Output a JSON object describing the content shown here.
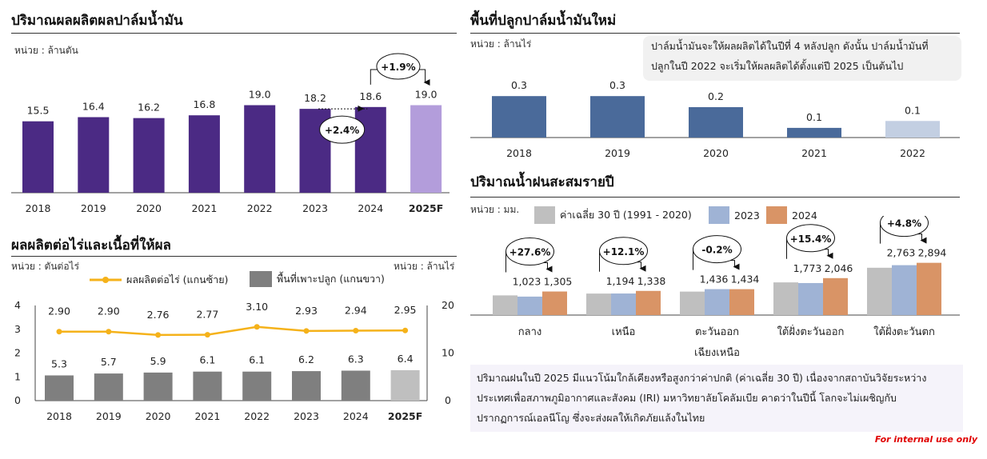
{
  "internal_note": "For internal use only",
  "chart_data": [
    {
      "id": "production",
      "type": "bar",
      "title": "ปริมาณผลผลิตผลปาล์มน้ำมัน",
      "unit": "หน่วย : ล้านตัน",
      "categories": [
        "2018",
        "2019",
        "2020",
        "2021",
        "2022",
        "2023",
        "2024",
        "2025F"
      ],
      "values": [
        15.5,
        16.4,
        16.2,
        16.8,
        19.0,
        18.2,
        18.6,
        19.0
      ],
      "value_labels": [
        "15.5",
        "16.4",
        "16.2",
        "16.8",
        "19.0",
        "18.2",
        "18.6",
        "19.0"
      ],
      "colors": {
        "actual": "#4b2a84",
        "forecast": "#b39ddb"
      },
      "annotations": [
        "+2.4%",
        "+1.9%"
      ],
      "ylim": [
        0,
        21
      ]
    },
    {
      "id": "yield",
      "type": "bar+line",
      "title": "ผลผลิตต่อไร่และเนื้อที่ให้ผล",
      "unit_left": "หน่วย : ตันต่อไร่",
      "unit_right": "หน่วย : ล้านไร่",
      "categories": [
        "2018",
        "2019",
        "2020",
        "2021",
        "2022",
        "2023",
        "2024",
        "2025F"
      ],
      "series": [
        {
          "name": "ผลผลิตต่อไร่ (แกนซ้าย)",
          "type": "line",
          "axis": "left",
          "color": "#f5b21a",
          "values": [
            2.9,
            2.9,
            2.76,
            2.77,
            3.1,
            2.93,
            2.94,
            2.95
          ],
          "labels": [
            "2.90",
            "2.90",
            "2.76",
            "2.77",
            "3.10",
            "2.93",
            "2.94",
            "2.95"
          ]
        },
        {
          "name": "พื้นที่เพาะปลูก (แกนขวา)",
          "type": "bar",
          "axis": "right",
          "color": "#7f7f7f",
          "forecast_color": "#bfbfbf",
          "values": [
            5.3,
            5.7,
            5.9,
            6.1,
            6.1,
            6.2,
            6.3,
            6.4
          ],
          "labels": [
            "5.3",
            "5.7",
            "5.9",
            "6.1",
            "6.1",
            "6.2",
            "6.3",
            "6.4"
          ]
        }
      ],
      "left_axis": {
        "range": [
          0,
          4
        ],
        "ticks": [
          "0",
          "1",
          "2",
          "3",
          "4"
        ]
      },
      "right_axis": {
        "range": [
          0,
          20
        ],
        "ticks": [
          "0",
          "10",
          "20"
        ]
      }
    },
    {
      "id": "new_area",
      "type": "bar",
      "title": "พื้นที่ปลูกปาล์มน้ำมันใหม่",
      "unit": "หน่วย : ล้านไร่",
      "note": [
        "ปาล์มน้ำมันจะให้ผลผลิตได้ในปีที่ 4 หลังปลูก ดังนั้น ปาล์มน้ำมันที่",
        "ปลูกในปี 2022 จะเริ่มให้ผลผลิตได้ตั้งแต่ปี 2025 เป็นต้นไป"
      ],
      "categories": [
        "2018",
        "2019",
        "2020",
        "2021",
        "2022"
      ],
      "values": [
        0.3,
        0.3,
        0.22,
        0.07,
        0.12
      ],
      "value_labels": [
        "0.3",
        "0.3",
        "0.2",
        "0.1",
        "0.1"
      ],
      "colors": {
        "actual": "#4a6a9a",
        "last": "#c3cfe2"
      },
      "ylim": [
        0,
        0.33
      ]
    },
    {
      "id": "rainfall",
      "type": "bar",
      "title": "ปริมาณน้ำฝนสะสมรายปี",
      "unit": "หน่วย : มม.",
      "categories": [
        [
          "กลาง"
        ],
        [
          "เหนือ"
        ],
        [
          "ตะวันออก",
          "เฉียงเหนือ"
        ],
        [
          "ใต้ฝั่งตะวันออก"
        ],
        [
          "ใต้ฝั่งตะวันตก"
        ]
      ],
      "series": [
        {
          "name": "ค่าเฉลี่ย 30 ปี (1991 - 2020)",
          "color": "#bfbfbf",
          "values": [
            1090,
            1190,
            1300,
            1810,
            2620
          ]
        },
        {
          "name": "2023",
          "color": "#9fb3d5",
          "values": [
            1023,
            1194,
            1436,
            1773,
            2763
          ],
          "labels": [
            "1,023",
            "1,194",
            "1,436",
            "1,773",
            "2,763"
          ]
        },
        {
          "name": "2024",
          "color": "#d99466",
          "values": [
            1305,
            1338,
            1434,
            2046,
            2894
          ],
          "labels": [
            "1,305",
            "1,338",
            "1,434",
            "2,046",
            "2,894"
          ]
        }
      ],
      "annotations": [
        "+27.6%",
        "+12.1%",
        "-0.2%",
        "+15.4%",
        "+4.8%"
      ],
      "ylim": [
        0,
        3100
      ],
      "footnote": [
        "ปริมาณฝนในปี 2025 มีแนวโน้มใกล้เคียงหรือสูงกว่าค่าปกติ (ค่าเฉลี่ย 30 ปี) เนื่องจากสถาบันวิจัยระหว่าง",
        "ประเทศเพื่อสภาพภูมิอากาศและสังคม (IRI) มหาวิทยาลัยโคลัมเบีย คาดว่าในปีนี้ โลกจะไม่เผชิญกับ",
        "ปรากฏการณ์เอลนีโญ ซึ่งจะส่งผลให้เกิดภัยแล้งในไทย"
      ]
    }
  ]
}
